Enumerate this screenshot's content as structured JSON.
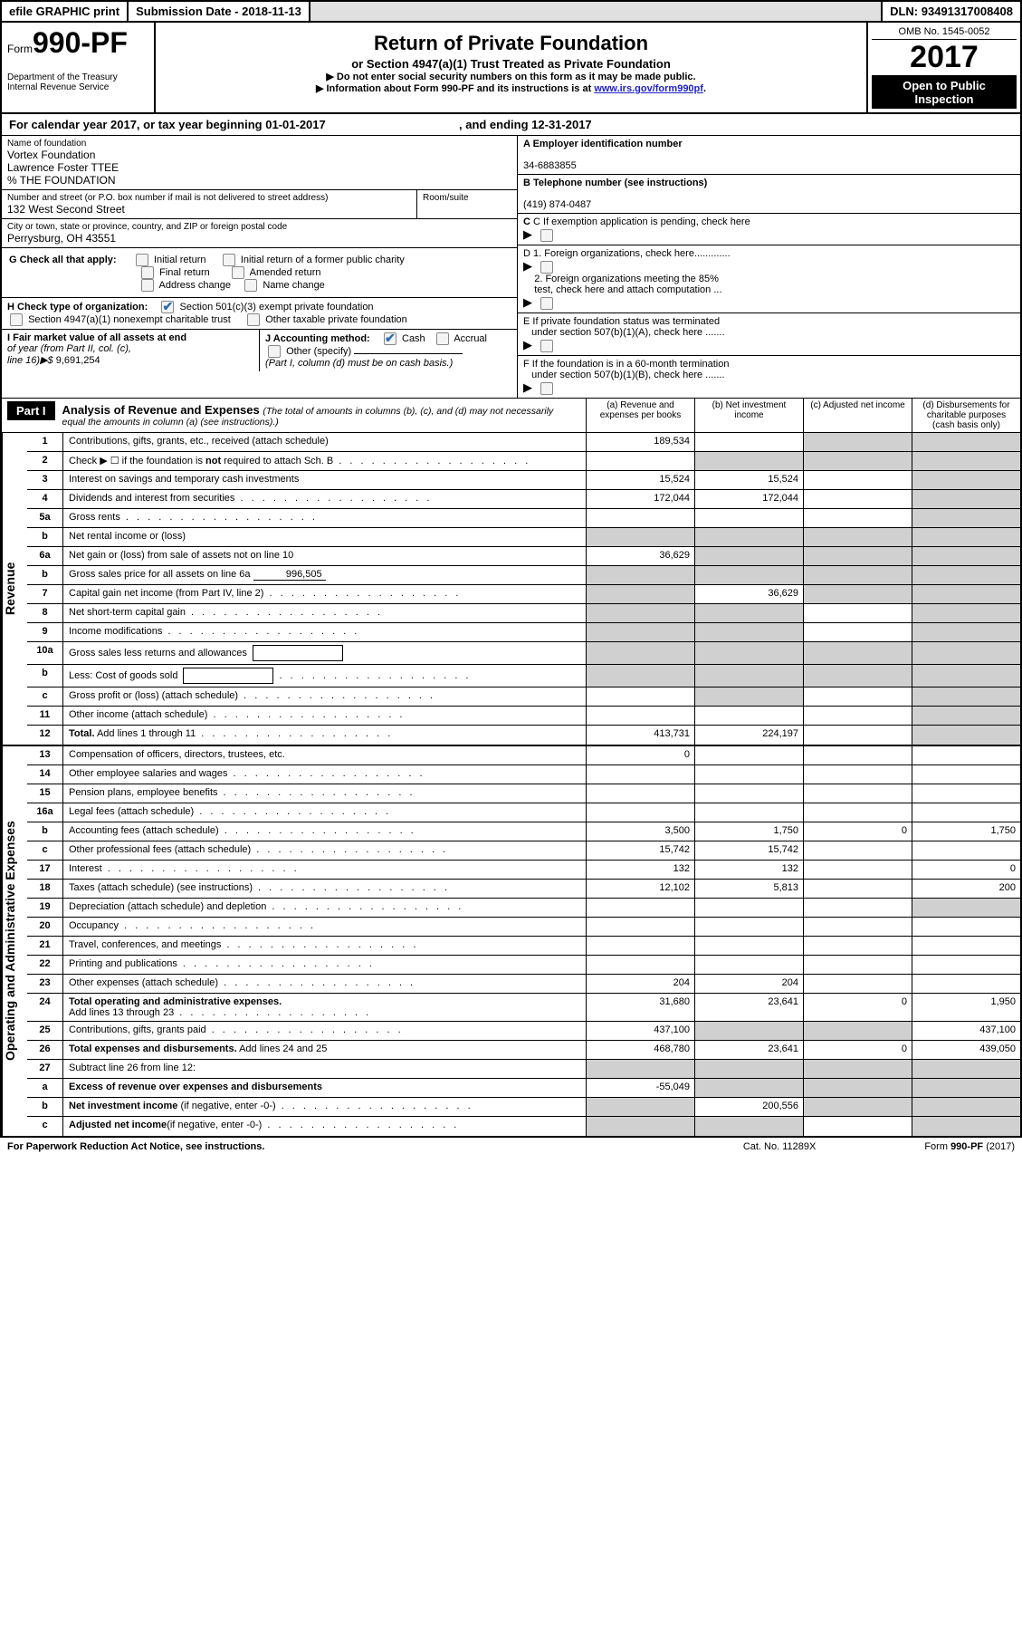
{
  "topbar": {
    "efile": "efile GRAPHIC print",
    "subdate_label": "Submission Date - ",
    "subdate": "2018-11-13",
    "dln_label": "DLN: ",
    "dln": "93491317008408"
  },
  "header": {
    "form_prefix": "Form",
    "form_num": "990-PF",
    "dept1": "Department of the Treasury",
    "dept2": "Internal Revenue Service",
    "title": "Return of Private Foundation",
    "subtitle": "or Section 4947(a)(1) Trust Treated as Private Foundation",
    "note1": "▶ Do not enter social security numbers on this form as it may be made public.",
    "note2_pre": "▶ Information about Form 990-PF and its instructions is at ",
    "note2_link": "www.irs.gov/form990pf",
    "note2_post": ".",
    "omb": "OMB No. 1545-0052",
    "year": "2017",
    "opi1": "Open to Public",
    "opi2": "Inspection"
  },
  "cal": {
    "pre": "For calendar year 2017, or tax year beginning ",
    "begin": "01-01-2017",
    "mid": " , and ending ",
    "end": "12-31-2017"
  },
  "foundation": {
    "name_label": "Name of foundation",
    "name1": "Vortex Foundation",
    "name2": "Lawrence Foster TTEE",
    "name3": "% THE FOUNDATION",
    "addr_label": "Number and street (or P.O. box number if mail is not delivered to street address)",
    "room_label": "Room/suite",
    "addr": "132 West Second Street",
    "city_label": "City or town, state or province, country, and ZIP or foreign postal code",
    "city": "Perrysburg, OH  43551"
  },
  "right_info": {
    "a_label": "A Employer identification number",
    "a_val": "34-6883855",
    "b_label": "B Telephone number (see instructions)",
    "b_val": "(419) 874-0487",
    "c_label": "C If exemption application is pending, check here",
    "d1": "D 1. Foreign organizations, check here.............",
    "d2a": "2. Foreign organizations meeting the 85%",
    "d2b": "test, check here and attach computation ...",
    "e1": "E  If private foundation status was terminated",
    "e2": "under section 507(b)(1)(A), check here .......",
    "f1": "F  If the foundation is in a 60-month termination",
    "f2": "under section 507(b)(1)(B), check here .......",
    "g_label": "G Check all that apply:",
    "g_opts": [
      "Initial return",
      "Initial return of a former public charity",
      "Final return",
      "Amended return",
      "Address change",
      "Name change"
    ],
    "h_label": "H Check type of organization:",
    "h_opt1": "Section 501(c)(3) exempt private foundation",
    "h_opt2": "Section 4947(a)(1) nonexempt charitable trust",
    "h_opt3": "Other taxable private foundation",
    "i_label1": "I Fair market value of all assets at end",
    "i_label2": "of year (from Part II, col. (c),",
    "i_label3": "line 16)▶$  ",
    "i_val": "9,691,254",
    "j_label": "J Accounting method:",
    "j_cash": "Cash",
    "j_accrual": "Accrual",
    "j_other": "Other (specify)",
    "j_note": "(Part I, column (d) must be on cash basis.)"
  },
  "part1": {
    "label": "Part I",
    "title": "Analysis of Revenue and Expenses ",
    "title_note": "(The total of amounts in columns (b), (c), and (d) may not necessarily equal the amounts in column (a) (see instructions).)",
    "col_a": "(a)   Revenue and expenses per books",
    "col_b": "(b)  Net investment income",
    "col_c": "(c)  Adjusted net income",
    "col_d": "(d)  Disbursements for charitable purposes (cash basis only)"
  },
  "revenue_label": "Revenue",
  "expenses_label": "Operating and Administrative Expenses",
  "rows": {
    "r1": {
      "ln": "1",
      "desc": "Contributions, gifts, grants, etc., received (attach schedule)",
      "a": "189,534",
      "b": "",
      "c": "g",
      "d": "g"
    },
    "r2": {
      "ln": "2",
      "desc": "Check ▶ ☐ if the foundation is <b>not</b> required to attach Sch. B",
      "dots": true,
      "a": "",
      "b": "g",
      "c": "g",
      "d": "g"
    },
    "r3": {
      "ln": "3",
      "desc": "Interest on savings and temporary cash investments",
      "a": "15,524",
      "b": "15,524",
      "c": "",
      "d": "g"
    },
    "r4": {
      "ln": "4",
      "desc": "Dividends and interest from securities",
      "dots": true,
      "a": "172,044",
      "b": "172,044",
      "c": "",
      "d": "g"
    },
    "r5a": {
      "ln": "5a",
      "desc": "Gross rents",
      "dots": true,
      "a": "",
      "b": "",
      "c": "",
      "d": "g"
    },
    "r5b": {
      "ln": "b",
      "desc": "Net rental income or (loss)",
      "a": "g",
      "b": "g",
      "c": "g",
      "d": "g"
    },
    "r6a": {
      "ln": "6a",
      "desc": "Net gain or (loss) from sale of assets not on line 10",
      "a": "36,629",
      "b": "g",
      "c": "g",
      "d": "g"
    },
    "r6b": {
      "ln": "b",
      "desc_pre": "Gross sales price for all assets on line 6a ",
      "inline": "996,505",
      "a": "g",
      "b": "g",
      "c": "g",
      "d": "g"
    },
    "r7": {
      "ln": "7",
      "desc": "Capital gain net income (from Part IV, line 2)",
      "dots": true,
      "a": "g",
      "b": "36,629",
      "c": "g",
      "d": "g"
    },
    "r8": {
      "ln": "8",
      "desc": "Net short-term capital gain",
      "dots": true,
      "a": "g",
      "b": "g",
      "c": "",
      "d": "g"
    },
    "r9": {
      "ln": "9",
      "desc": "Income modifications",
      "dots": true,
      "a": "g",
      "b": "g",
      "c": "",
      "d": "g"
    },
    "r10a": {
      "ln": "10a",
      "desc": "Gross sales less returns and allowances",
      "box": true,
      "a": "g",
      "b": "g",
      "c": "g",
      "d": "g"
    },
    "r10b": {
      "ln": "b",
      "desc": "Less: Cost of goods sold",
      "dots": true,
      "box": true,
      "a": "g",
      "b": "g",
      "c": "g",
      "d": "g"
    },
    "r10c": {
      "ln": "c",
      "desc": "Gross profit or (loss) (attach schedule)",
      "dots": true,
      "a": "",
      "b": "g",
      "c": "",
      "d": "g"
    },
    "r11": {
      "ln": "11",
      "desc": "Other income (attach schedule)",
      "dots": true,
      "a": "",
      "b": "",
      "c": "",
      "d": "g"
    },
    "r12": {
      "ln": "12",
      "desc": "<b>Total.</b> Add lines 1 through 11",
      "dots": true,
      "a": "413,731",
      "b": "224,197",
      "c": "",
      "d": "g"
    },
    "r13": {
      "ln": "13",
      "desc": "Compensation of officers, directors, trustees, etc.",
      "a": "0",
      "b": "",
      "c": "",
      "d": ""
    },
    "r14": {
      "ln": "14",
      "desc": "Other employee salaries and wages",
      "dots": true,
      "a": "",
      "b": "",
      "c": "",
      "d": ""
    },
    "r15": {
      "ln": "15",
      "desc": "Pension plans, employee benefits",
      "dots": true,
      "a": "",
      "b": "",
      "c": "",
      "d": ""
    },
    "r16a": {
      "ln": "16a",
      "desc": "Legal fees (attach schedule)",
      "dots": true,
      "a": "",
      "b": "",
      "c": "",
      "d": ""
    },
    "r16b": {
      "ln": "b",
      "desc": "Accounting fees (attach schedule)",
      "dots": true,
      "a": "3,500",
      "b": "1,750",
      "c": "0",
      "d": "1,750"
    },
    "r16c": {
      "ln": "c",
      "desc": "Other professional fees (attach schedule)",
      "dots": true,
      "a": "15,742",
      "b": "15,742",
      "c": "",
      "d": ""
    },
    "r17": {
      "ln": "17",
      "desc": "Interest",
      "dots": true,
      "a": "132",
      "b": "132",
      "c": "",
      "d": "0"
    },
    "r18": {
      "ln": "18",
      "desc": "Taxes (attach schedule) (see instructions)",
      "dots": true,
      "a": "12,102",
      "b": "5,813",
      "c": "",
      "d": "200"
    },
    "r19": {
      "ln": "19",
      "desc": "Depreciation (attach schedule) and depletion",
      "dots": true,
      "a": "",
      "b": "",
      "c": "",
      "d": "g"
    },
    "r20": {
      "ln": "20",
      "desc": "Occupancy",
      "dots": true,
      "a": "",
      "b": "",
      "c": "",
      "d": ""
    },
    "r21": {
      "ln": "21",
      "desc": "Travel, conferences, and meetings",
      "dots": true,
      "a": "",
      "b": "",
      "c": "",
      "d": ""
    },
    "r22": {
      "ln": "22",
      "desc": "Printing and publications",
      "dots": true,
      "a": "",
      "b": "",
      "c": "",
      "d": ""
    },
    "r23": {
      "ln": "23",
      "desc": "Other expenses (attach schedule)",
      "dots": true,
      "a": "204",
      "b": "204",
      "c": "",
      "d": ""
    },
    "r24": {
      "ln": "24",
      "desc": "<b>Total operating and administrative expenses.</b><br>Add lines 13 through 23",
      "dots": true,
      "a": "31,680",
      "b": "23,641",
      "c": "0",
      "d": "1,950"
    },
    "r25": {
      "ln": "25",
      "desc": "Contributions, gifts, grants paid",
      "dots": true,
      "a": "437,100",
      "b": "g",
      "c": "g",
      "d": "437,100"
    },
    "r26": {
      "ln": "26",
      "desc": "<b>Total expenses and disbursements.</b> Add lines 24 and 25",
      "a": "468,780",
      "b": "23,641",
      "c": "0",
      "d": "439,050"
    },
    "r27": {
      "ln": "27",
      "desc": "Subtract line 26 from line 12:",
      "a": "g",
      "b": "g",
      "c": "g",
      "d": "g"
    },
    "r27a": {
      "ln": "a",
      "desc": "<b>Excess of revenue over expenses and disbursements</b>",
      "a": "-55,049",
      "b": "g",
      "c": "g",
      "d": "g"
    },
    "r27b": {
      "ln": "b",
      "desc": "<b>Net investment income</b> (if negative, enter -0-)",
      "dots": true,
      "a": "g",
      "b": "200,556",
      "c": "g",
      "d": "g"
    },
    "r27c": {
      "ln": "c",
      "desc": "<b>Adjusted net income</b>(if negative, enter -0-)",
      "dots": true,
      "a": "g",
      "b": "g",
      "c": "",
      "d": "g"
    }
  },
  "footer": {
    "left": "For Paperwork Reduction Act Notice, see instructions.",
    "center": "Cat. No. 11289X",
    "right": "Form <b>990-PF</b> (2017)"
  },
  "colors": {
    "gray_cell": "#d0d0d0",
    "link": "#2020cc"
  }
}
